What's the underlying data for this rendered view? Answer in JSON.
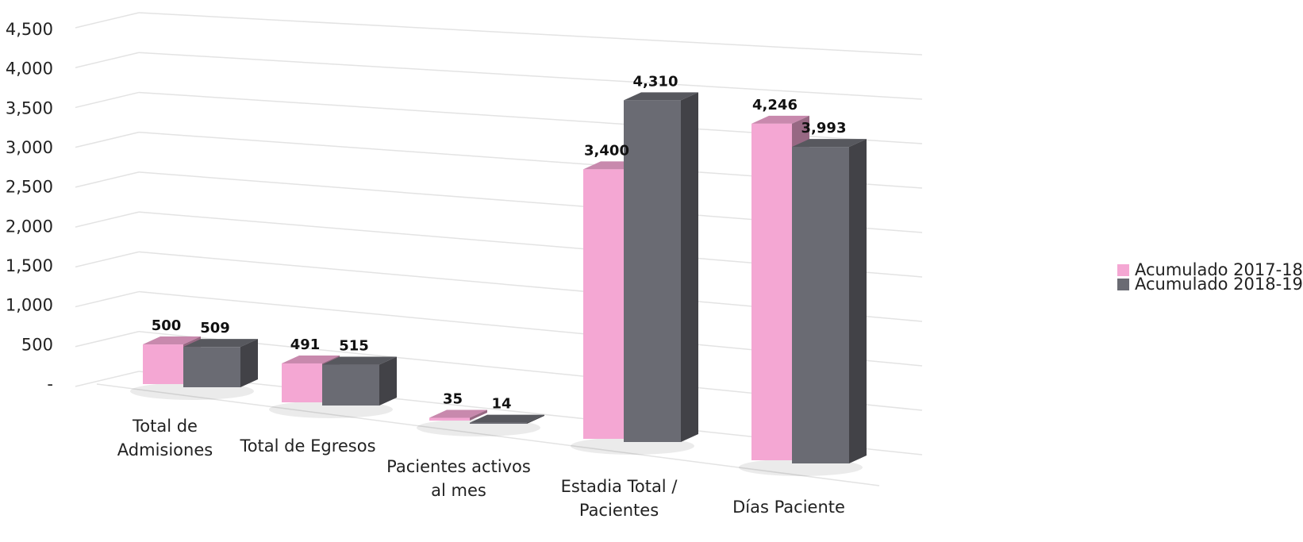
{
  "chart_data": {
    "type": "bar",
    "style": "3d-clustered-column",
    "categories": [
      [
        "Total de",
        "Admisiones"
      ],
      [
        "Total de Egresos"
      ],
      [
        "Pacientes activos",
        "al mes"
      ],
      [
        "Estadia Total /",
        "Pacientes"
      ],
      [
        "Días Paciente"
      ]
    ],
    "series": [
      {
        "name": "Acumulado 2017-18",
        "values": [
          500,
          491,
          35,
          3400,
          4246
        ],
        "labels": [
          "500",
          "491",
          "35",
          "3,400",
          "4,246"
        ],
        "color": "#f4a7d3"
      },
      {
        "name": "Acumulado 2018-19",
        "values": [
          509,
          515,
          14,
          4310,
          3993
        ],
        "labels": [
          "509",
          "515",
          "14",
          "4,310",
          "3,993"
        ],
        "color": "#6a6b73"
      }
    ],
    "y_ticks": [
      "-",
      "500",
      "1,000",
      "1,500",
      "2,000",
      "2,500",
      "3,000",
      "3,500",
      "4,000",
      "4,500"
    ],
    "ylim": [
      0,
      4500
    ],
    "grid": true,
    "legend_position": "right"
  }
}
